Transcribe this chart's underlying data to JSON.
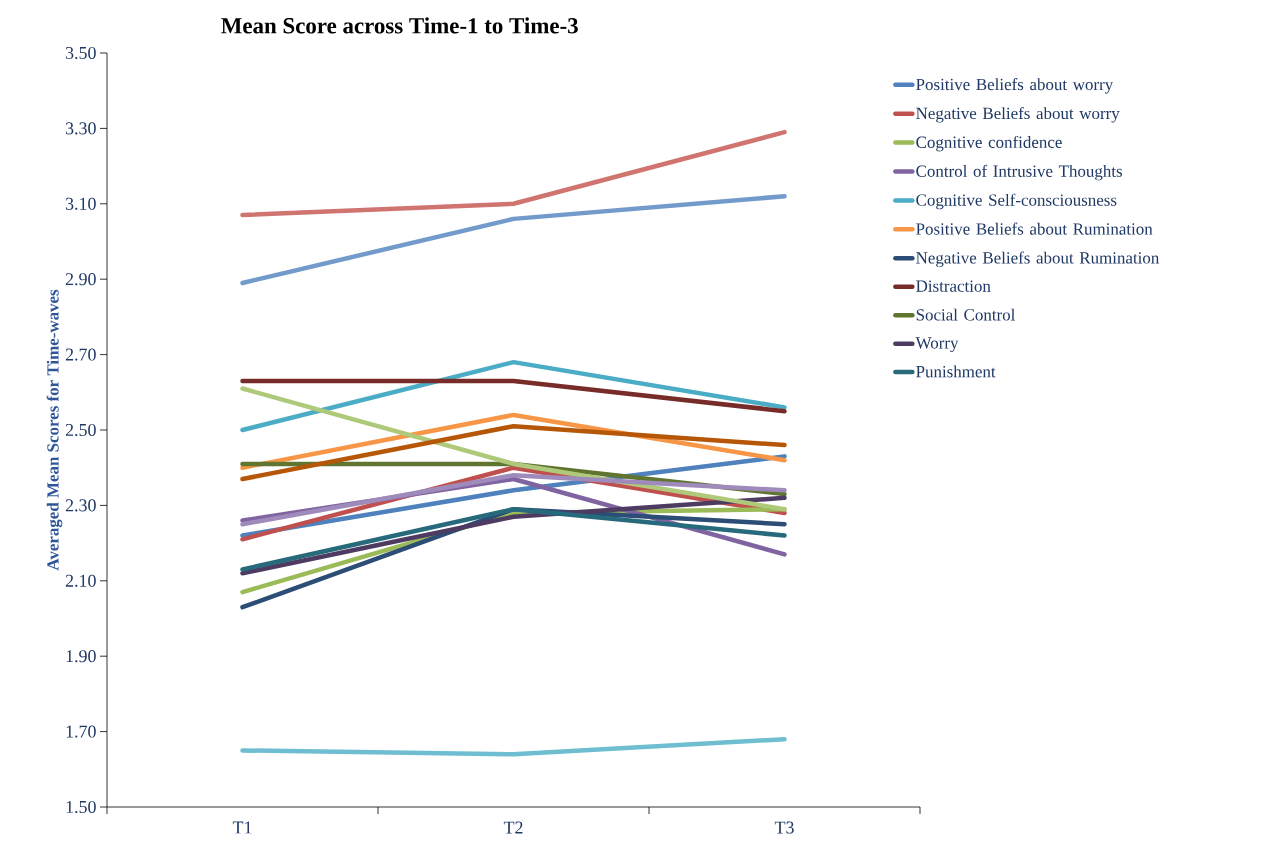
{
  "chart_data": {
    "type": "line",
    "title": "Mean Score across Time-1 to Time-3",
    "ylabel": "Averaged Mean Scores for Time-waves",
    "categories": [
      "T1",
      "T2",
      "T3"
    ],
    "ylim": [
      1.5,
      3.5
    ],
    "yticks": [
      {
        "value": 1.5,
        "label": "1.50"
      },
      {
        "value": 1.7,
        "label": "1.70"
      },
      {
        "value": 1.9,
        "label": "1.90"
      },
      {
        "value": 2.1,
        "label": "2.10"
      },
      {
        "value": 2.3,
        "label": "2.30"
      },
      {
        "value": 2.5,
        "label": "2.50"
      },
      {
        "value": 2.7,
        "label": "2.70"
      },
      {
        "value": 2.9,
        "label": "2.90"
      },
      {
        "value": 3.1,
        "label": "3.10"
      },
      {
        "value": 3.3,
        "label": "3.30"
      },
      {
        "value": 3.5,
        "label": "3.50"
      }
    ],
    "legend": "right",
    "series": [
      {
        "name": "Positive Beliefs about worry",
        "color": "#4f81bd",
        "values": [
          2.22,
          2.34,
          2.43
        ]
      },
      {
        "name": "Negative Beliefs about worry",
        "color": "#c0504d",
        "values": [
          2.21,
          2.4,
          2.28
        ]
      },
      {
        "name": "Cognitive confidence",
        "color": "#9bbb59",
        "values": [
          2.07,
          2.28,
          2.29
        ]
      },
      {
        "name": "Control of Intrusive Thoughts",
        "color": "#8064a2",
        "values": [
          2.26,
          2.37,
          2.17
        ]
      },
      {
        "name": "Cognitive Self-consciousness",
        "color": "#4bacc6",
        "values": [
          2.5,
          2.68,
          2.56
        ]
      },
      {
        "name": "Positive Beliefs about Rumination",
        "color": "#f79646",
        "values": [
          2.4,
          2.54,
          2.42
        ]
      },
      {
        "name": "Negative Beliefs about Rumination",
        "color": "#2c4d75",
        "values": [
          2.03,
          2.29,
          2.25
        ]
      },
      {
        "name": "Distraction",
        "color": "#772c2a",
        "values": [
          2.63,
          2.63,
          2.55
        ]
      },
      {
        "name": "Social Control",
        "color": "#5f7530",
        "values": [
          2.41,
          2.41,
          2.33
        ]
      },
      {
        "name": "Worry",
        "color": "#4d3b62",
        "values": [
          2.12,
          2.27,
          2.32
        ]
      },
      {
        "name": "Punishment",
        "color": "#276a7c",
        "values": [
          2.13,
          2.29,
          2.22
        ]
      },
      {
        "color": "#d07470",
        "values": [
          3.07,
          3.1,
          3.29
        ]
      },
      {
        "color": "#729aca",
        "values": [
          2.89,
          3.06,
          3.12
        ]
      },
      {
        "color": "#afc97a",
        "values": [
          2.61,
          2.41,
          2.29
        ]
      },
      {
        "color": "#9f8bbb",
        "values": [
          2.25,
          2.38,
          2.34
        ]
      },
      {
        "color": "#6fbdd1",
        "values": [
          1.65,
          1.64,
          1.68
        ]
      },
      {
        "color": "#b65708",
        "values": [
          2.37,
          2.51,
          2.46
        ]
      }
    ]
  }
}
